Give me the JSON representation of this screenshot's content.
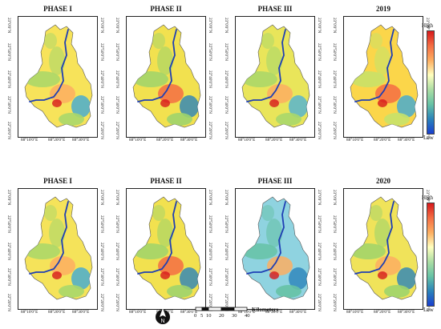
{
  "panels": [
    {
      "id": "r1c1",
      "title": "PHASE I"
    },
    {
      "id": "r1c2",
      "title": "PHASE II"
    },
    {
      "id": "r1c3",
      "title": "PHASE III"
    },
    {
      "id": "r1c4",
      "title": "2019"
    },
    {
      "id": "r2c1",
      "title": "PHASE I"
    },
    {
      "id": "r2c2",
      "title": "PHASE II"
    },
    {
      "id": "r2c3",
      "title": "PHASE III"
    },
    {
      "id": "r2c4",
      "title": "2020"
    }
  ],
  "x_ticks": [
    "88°10'0\"E",
    "88°20'0\"E",
    "88°30'0\"E"
  ],
  "y_ticks": [
    "23°0'0\"N",
    "22°50'0\"N",
    "22°40'0\"N",
    "22°30'0\"N",
    "22°20'0\"N"
  ],
  "legend": {
    "high": "High",
    "low": "Low",
    "colors": [
      "#d7191c",
      "#f46d43",
      "#fdae61",
      "#ffffbf",
      "#abdda4",
      "#66c2a5",
      "#2b83ba",
      "#1a3fcf"
    ]
  },
  "scale": {
    "ticks": [
      "0",
      "5",
      "10",
      "20",
      "30",
      "40"
    ],
    "unit": "Kilometers"
  },
  "north_arrow": "north-arrow-icon"
}
